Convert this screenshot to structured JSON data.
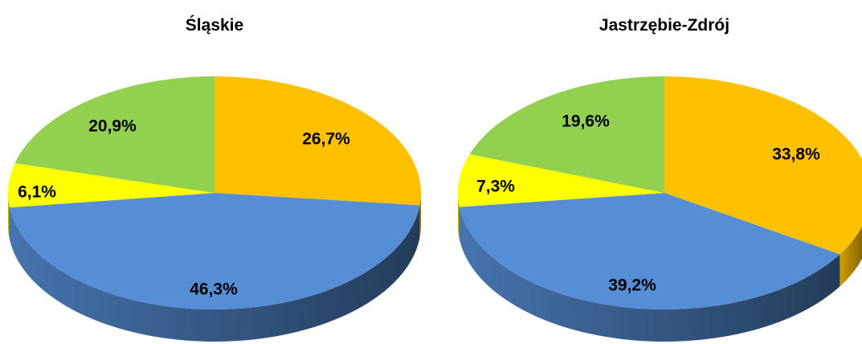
{
  "chart_data": [
    {
      "type": "pie",
      "title": "Śląskie",
      "slices": [
        {
          "value": 26.7,
          "label": "26,7%",
          "color": "#FFC000"
        },
        {
          "value": 46.3,
          "label": "46,3%",
          "color": "#558ED5"
        },
        {
          "value": 6.1,
          "label": "6,1%",
          "color": "#FFFF00"
        },
        {
          "value": 20.9,
          "label": "20,9%",
          "color": "#92D050"
        }
      ],
      "style": "3d-tilted",
      "start": "12 o'clock, clockwise",
      "legend": "none"
    },
    {
      "type": "pie",
      "title": "Jastrzębie-Zdrój",
      "slices": [
        {
          "value": 33.8,
          "label": "33,8%",
          "color": "#FFC000"
        },
        {
          "value": 39.2,
          "label": "39,2%",
          "color": "#558ED5"
        },
        {
          "value": 7.3,
          "label": "7,3%",
          "color": "#FFFF00"
        },
        {
          "value": 19.6,
          "label": "19,6%",
          "color": "#92D050"
        }
      ],
      "style": "3d-tilted",
      "start": "12 o'clock, clockwise",
      "legend": "none"
    }
  ]
}
